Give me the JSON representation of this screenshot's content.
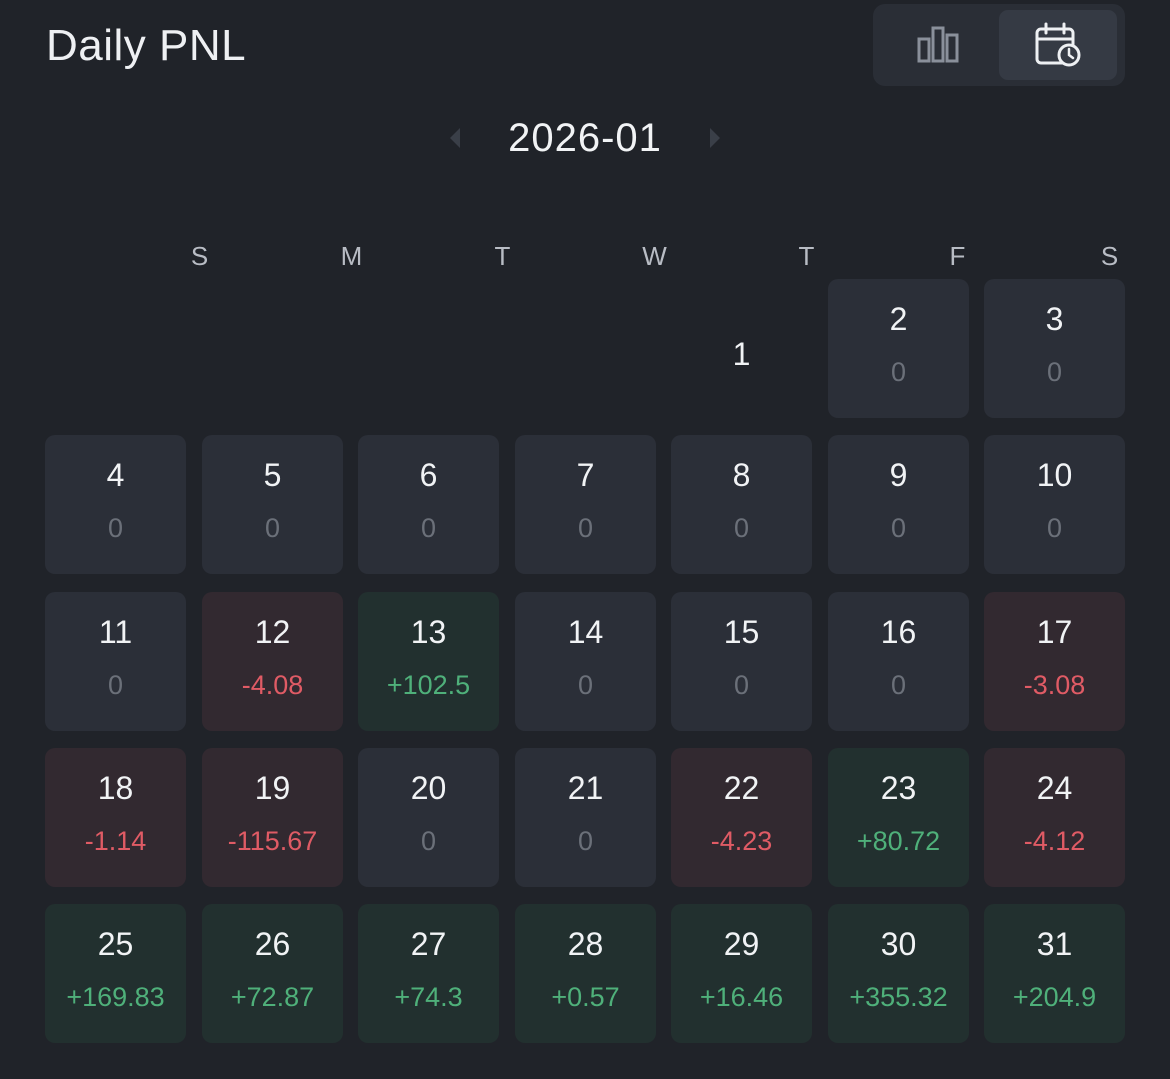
{
  "header": {
    "title": "Daily PNL"
  },
  "month": {
    "label": "2026-01"
  },
  "weekdays": [
    "S",
    "M",
    "T",
    "W",
    "T",
    "F",
    "S"
  ],
  "colors": {
    "background": "#202329",
    "neutral_cell": "#2b2f38",
    "negative_cell": "#322930",
    "positive_cell": "#22302f",
    "negative_text": "#e05b65",
    "positive_text": "#4fb07a",
    "zero_text": "#6b7079"
  },
  "days": [
    {
      "day": "1",
      "pnl": null,
      "col": 4,
      "row": 0,
      "state": "bare"
    },
    {
      "day": "2",
      "pnl": "0",
      "col": 5,
      "row": 0,
      "state": "neutral"
    },
    {
      "day": "3",
      "pnl": "0",
      "col": 6,
      "row": 0,
      "state": "neutral"
    },
    {
      "day": "4",
      "pnl": "0",
      "col": 0,
      "row": 1,
      "state": "neutral"
    },
    {
      "day": "5",
      "pnl": "0",
      "col": 1,
      "row": 1,
      "state": "neutral"
    },
    {
      "day": "6",
      "pnl": "0",
      "col": 2,
      "row": 1,
      "state": "neutral"
    },
    {
      "day": "7",
      "pnl": "0",
      "col": 3,
      "row": 1,
      "state": "neutral"
    },
    {
      "day": "8",
      "pnl": "0",
      "col": 4,
      "row": 1,
      "state": "neutral"
    },
    {
      "day": "9",
      "pnl": "0",
      "col": 5,
      "row": 1,
      "state": "neutral"
    },
    {
      "day": "10",
      "pnl": "0",
      "col": 6,
      "row": 1,
      "state": "neutral"
    },
    {
      "day": "11",
      "pnl": "0",
      "col": 0,
      "row": 2,
      "state": "neutral"
    },
    {
      "day": "12",
      "pnl": "-4.08",
      "col": 1,
      "row": 2,
      "state": "neg"
    },
    {
      "day": "13",
      "pnl": "+102.5",
      "col": 2,
      "row": 2,
      "state": "pos"
    },
    {
      "day": "14",
      "pnl": "0",
      "col": 3,
      "row": 2,
      "state": "neutral"
    },
    {
      "day": "15",
      "pnl": "0",
      "col": 4,
      "row": 2,
      "state": "neutral"
    },
    {
      "day": "16",
      "pnl": "0",
      "col": 5,
      "row": 2,
      "state": "neutral"
    },
    {
      "day": "17",
      "pnl": "-3.08",
      "col": 6,
      "row": 2,
      "state": "neg"
    },
    {
      "day": "18",
      "pnl": "-1.14",
      "col": 0,
      "row": 3,
      "state": "neg"
    },
    {
      "day": "19",
      "pnl": "-115.67",
      "col": 1,
      "row": 3,
      "state": "neg"
    },
    {
      "day": "20",
      "pnl": "0",
      "col": 2,
      "row": 3,
      "state": "neutral"
    },
    {
      "day": "21",
      "pnl": "0",
      "col": 3,
      "row": 3,
      "state": "neutral"
    },
    {
      "day": "22",
      "pnl": "-4.23",
      "col": 4,
      "row": 3,
      "state": "neg"
    },
    {
      "day": "23",
      "pnl": "+80.72",
      "col": 5,
      "row": 3,
      "state": "pos"
    },
    {
      "day": "24",
      "pnl": "-4.12",
      "col": 6,
      "row": 3,
      "state": "neg"
    },
    {
      "day": "25",
      "pnl": "+169.83",
      "col": 0,
      "row": 4,
      "state": "pos"
    },
    {
      "day": "26",
      "pnl": "+72.87",
      "col": 1,
      "row": 4,
      "state": "pos"
    },
    {
      "day": "27",
      "pnl": "+74.3",
      "col": 2,
      "row": 4,
      "state": "pos"
    },
    {
      "day": "28",
      "pnl": "+0.57",
      "col": 3,
      "row": 4,
      "state": "pos"
    },
    {
      "day": "29",
      "pnl": "+16.46",
      "col": 4,
      "row": 4,
      "state": "pos"
    },
    {
      "day": "30",
      "pnl": "+355.32",
      "col": 5,
      "row": 4,
      "state": "pos"
    },
    {
      "day": "31",
      "pnl": "+204.9",
      "col": 6,
      "row": 4,
      "state": "pos"
    }
  ]
}
